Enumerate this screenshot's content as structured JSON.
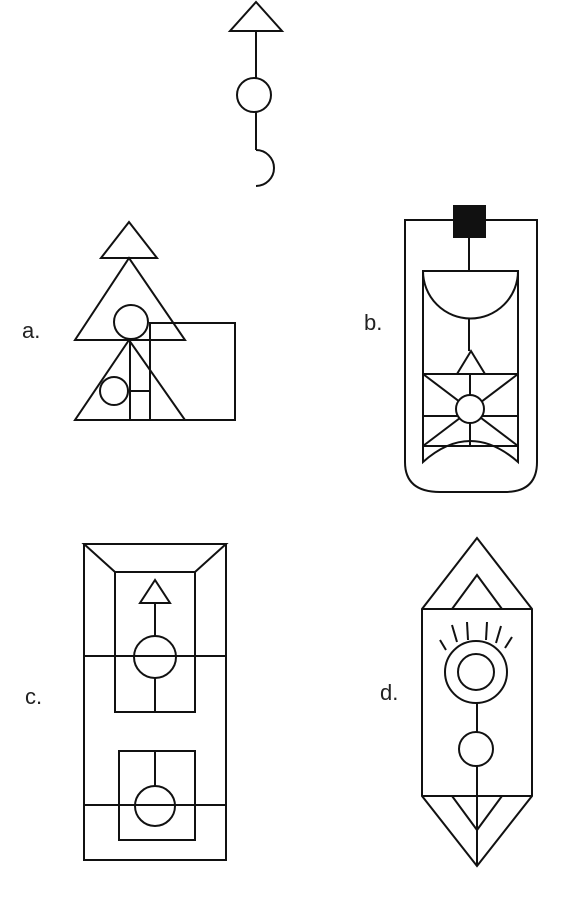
{
  "options": [
    {
      "label": "a."
    },
    {
      "label": "b."
    },
    {
      "label": "c."
    },
    {
      "label": "d."
    }
  ],
  "colors": {
    "stroke": "#111111",
    "background": "#ffffff"
  }
}
